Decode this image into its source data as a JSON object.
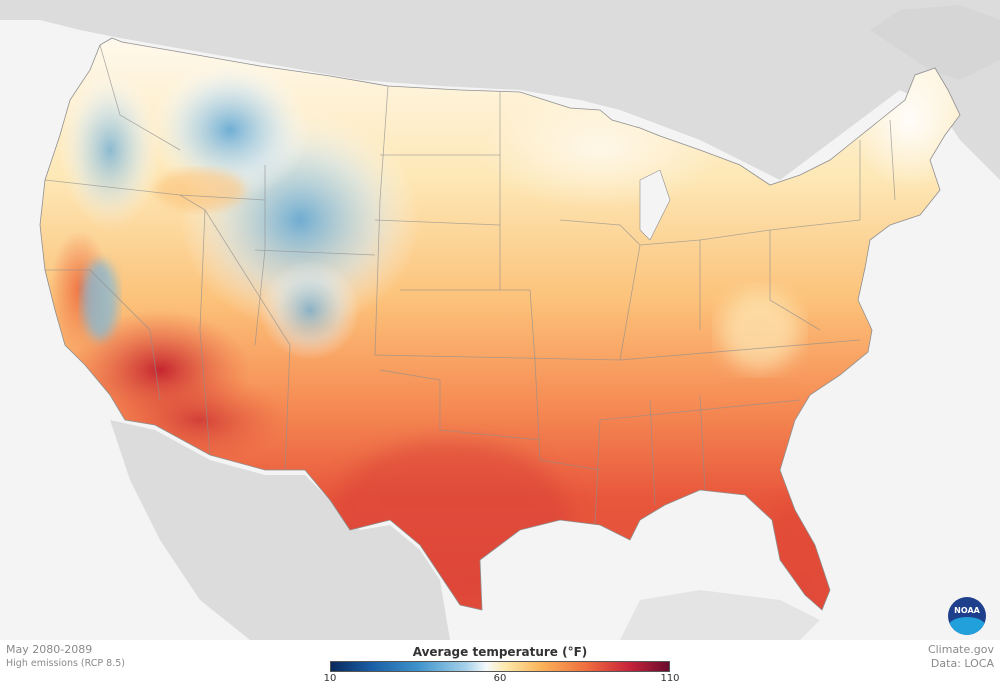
{
  "footer": {
    "period": "May 2080-2089",
    "scenario": "High emissions (RCP 8.5)",
    "source_site": "Climate.gov",
    "source_data": "Data: LOCA"
  },
  "legend": {
    "title": "Average temperature (°F)",
    "ticks": [
      "10",
      "60",
      "110"
    ],
    "min": 10,
    "mid": 60,
    "max": 110,
    "colors": {
      "coldest": "#082a5e",
      "cool": "#3f94cc",
      "neutral": "#f6f9fb",
      "warm": "#fbb45a",
      "hot": "#ee6b3e",
      "hottest": "#6a0b2d"
    }
  },
  "logo": {
    "text": "NOAA"
  },
  "icons": {
    "logo": "noaa-logo-icon"
  }
}
